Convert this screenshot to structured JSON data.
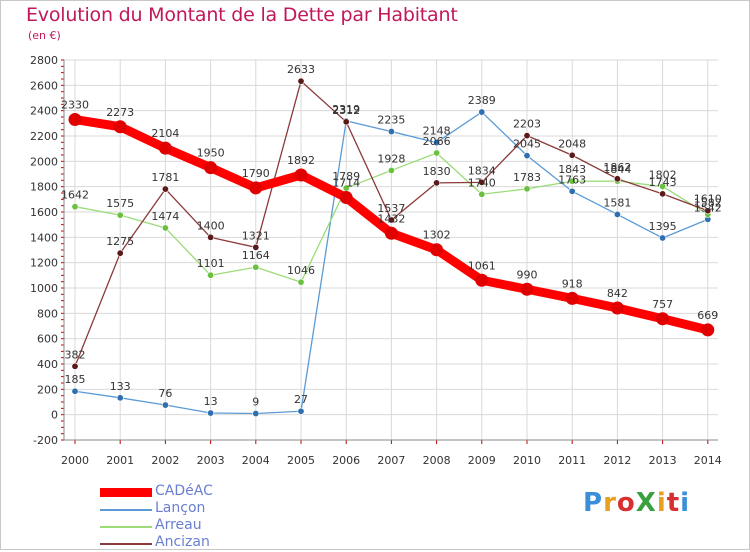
{
  "title": "Evolution du Montant de la Dette par Habitant",
  "subtitle": "(en €)",
  "logo": {
    "text": "ProXiti",
    "colors": [
      "#3a8fd8",
      "#e8a020",
      "#d83030",
      "#3aa040",
      "#e8a020",
      "#d83030",
      "#3a8fd8"
    ]
  },
  "chart_data": {
    "type": "line",
    "x": [
      "2000",
      "2001",
      "2002",
      "2003",
      "2004",
      "2005",
      "2006",
      "2007",
      "2008",
      "2009",
      "2010",
      "2011",
      "2012",
      "2013",
      "2014"
    ],
    "ylim": [
      -200,
      2800
    ],
    "yticks": [
      "-200",
      "0",
      "200",
      "400",
      "600",
      "800",
      "1000",
      "1200",
      "1400",
      "1600",
      "1800",
      "2000",
      "2200",
      "2400",
      "2600",
      "2800"
    ],
    "grid": true,
    "legend_position": "bottom-left",
    "series": [
      {
        "name": "Lançon",
        "color": "#5b9bd5",
        "marker": "#2f6fb0",
        "values": [
          185,
          133,
          76,
          13,
          9,
          27,
          2319,
          2235,
          2148,
          2389,
          2045,
          1763,
          1581,
          1395,
          1542
        ],
        "labels": [
          "185",
          "133",
          "76",
          "13",
          "9",
          "27",
          "2319",
          "2235",
          "2148",
          "2389",
          "2045",
          "1763",
          "1581",
          "1395",
          "1542"
        ]
      },
      {
        "name": "Arreau",
        "color": "#9bdc78",
        "marker": "#6cc040",
        "values": [
          1642,
          1575,
          1474,
          1101,
          1164,
          1046,
          1789,
          1928,
          2066,
          1740,
          1783,
          1843,
          1844,
          1802,
          1582
        ],
        "labels": [
          "1642",
          "1575",
          "1474",
          "1101",
          "1164",
          "1046",
          "1789",
          "1928",
          "2066",
          "1740",
          "1783",
          "1843",
          "1844",
          "1802",
          "1582"
        ]
      },
      {
        "name": "Ancizan",
        "color": "#8b3a3a",
        "marker": "#5a1a1a",
        "values": [
          382,
          1275,
          1781,
          1400,
          1321,
          2633,
          2312,
          1537,
          1830,
          1834,
          2203,
          2048,
          1862,
          1743,
          1610
        ],
        "labels": [
          "382",
          "1275",
          "1781",
          "1400",
          "1321",
          "2633",
          "2312",
          "1537",
          "1830",
          "1834",
          "2203",
          "2048",
          "1862",
          "1743",
          "1610"
        ]
      },
      {
        "name": "CADéAC",
        "color": "#ff0000",
        "marker": "#e00000",
        "values": [
          2330,
          2273,
          2104,
          1950,
          1790,
          1892,
          1714,
          1432,
          1302,
          1061,
          990,
          918,
          842,
          757,
          669
        ],
        "labels": [
          "2330",
          "2273",
          "2104",
          "1950",
          "1790",
          "1892",
          "1714",
          "1432",
          "1302",
          "1061",
          "990",
          "918",
          "842",
          "757",
          "669"
        ]
      }
    ],
    "legend": [
      {
        "name": "CADéAC",
        "color": "#ff0000",
        "thick": true
      },
      {
        "name": "Lançon",
        "color": "#5b9bd5",
        "thick": false
      },
      {
        "name": "Arreau",
        "color": "#9bdc78",
        "thick": false
      },
      {
        "name": "Ancizan",
        "color": "#8b3a3a",
        "thick": false
      }
    ]
  }
}
